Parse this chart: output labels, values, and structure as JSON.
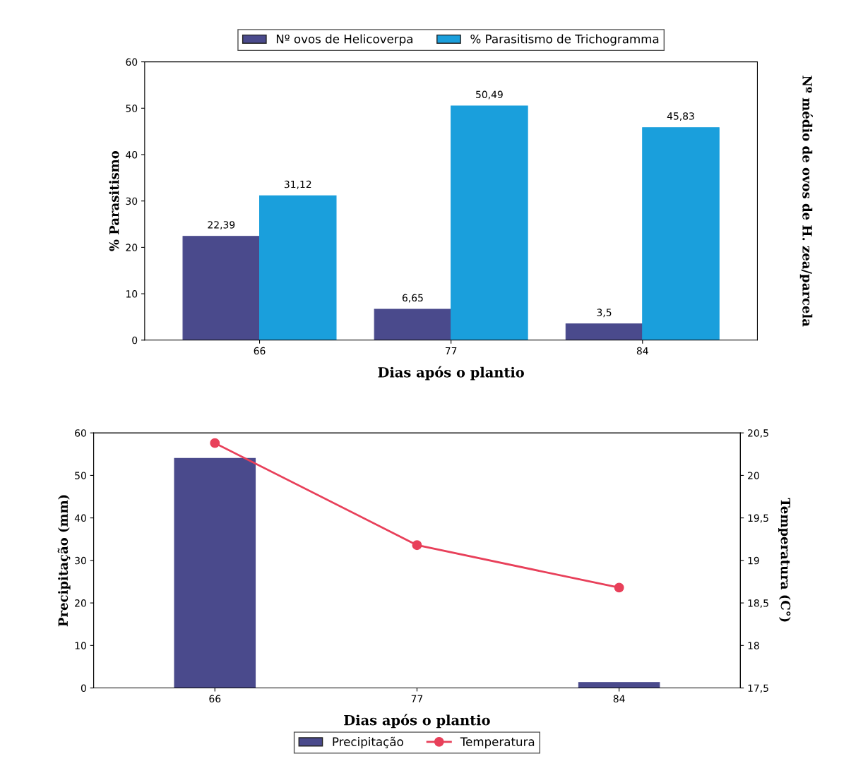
{
  "chart_data": [
    {
      "type": "bar",
      "categories": [
        "66",
        "77",
        "84"
      ],
      "xlabel": "Dias após o plantio",
      "ylabel": "% Parasitismo",
      "y2label": "Nº médio de ovos de H. zea/parcela",
      "ylim": [
        0,
        60
      ],
      "yticks": [
        0,
        10,
        20,
        30,
        40,
        50,
        60
      ],
      "grid": false,
      "legend": "top",
      "series": [
        {
          "name": "Nº ovos de Helicoverpa",
          "color": "#4a4a8c",
          "values": [
            22.39,
            6.65,
            3.5
          ],
          "value_labels": [
            "22,39",
            "6,65",
            "3,5"
          ]
        },
        {
          "name": "% Parasitismo de Trichogramma",
          "color": "#1a9fdc",
          "values": [
            31.12,
            50.49,
            45.83
          ],
          "value_labels": [
            "31,12",
            "50,49",
            "45,83"
          ]
        }
      ]
    },
    {
      "type": "bar",
      "categories": [
        "66",
        "77",
        "84"
      ],
      "xlabel": "Dias após o plantio",
      "ylabel": "Precipitação (mm)",
      "y2label": "Temperatura (C°)",
      "ylim": [
        0,
        60
      ],
      "yticks": [
        0,
        10,
        20,
        30,
        40,
        50,
        60
      ],
      "y2lim": [
        17.5,
        20.5
      ],
      "y2ticks": [
        {
          "value": 17.5,
          "label": "17,5"
        },
        18,
        {
          "value": 18.5,
          "label": "18,5"
        },
        19,
        {
          "value": 19.5,
          "label": "19,5"
        },
        20,
        {
          "value": 20.5,
          "label": "20,5"
        }
      ],
      "grid": false,
      "legend": "bottom",
      "series": [
        {
          "name": "Precipitação",
          "color": "#4a4a8c",
          "values": [
            54,
            0,
            1.3
          ]
        },
        {
          "name": "Temperatura",
          "type": "line",
          "axis": "y2",
          "marker": "circle",
          "color": "#e8405a",
          "values": [
            20.38,
            19.18,
            18.68
          ]
        }
      ]
    }
  ]
}
